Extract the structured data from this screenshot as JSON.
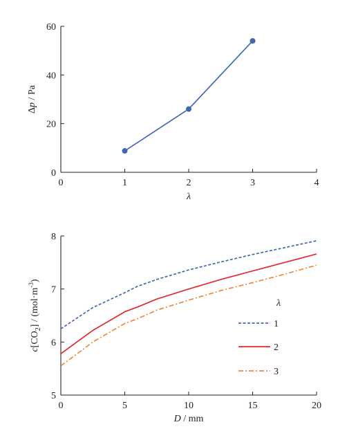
{
  "chart_data": [
    {
      "type": "line",
      "x": [
        1,
        2,
        3
      ],
      "series": [
        {
          "values": [
            8.8,
            26.0,
            54.0
          ],
          "color": "#3f67b2",
          "line_style": "solid",
          "markers": true
        }
      ],
      "xlabel": "λ",
      "ylabel_prefix": "Δ",
      "ylabel_var": "p",
      "ylabel_unit": " / Pa",
      "xlim": [
        0,
        4
      ],
      "ylim": [
        0,
        60
      ],
      "xticks": [
        0,
        1,
        2,
        3,
        4
      ],
      "yticks": [
        0,
        20,
        40,
        60
      ],
      "grid": false
    },
    {
      "type": "line",
      "x": [
        0,
        2.5,
        5,
        6,
        7.5,
        10,
        12.5,
        15,
        17.5,
        20
      ],
      "series": [
        {
          "name": "1",
          "values": [
            6.25,
            6.65,
            6.93,
            7.05,
            7.18,
            7.36,
            7.51,
            7.65,
            7.78,
            7.91
          ],
          "color": "#3f67b2",
          "line_style": "dashed"
        },
        {
          "name": "2",
          "values": [
            5.78,
            6.22,
            6.57,
            6.66,
            6.81,
            7.0,
            7.18,
            7.34,
            7.5,
            7.66
          ],
          "color": "#e0282d",
          "line_style": "solid"
        },
        {
          "name": "3",
          "values": [
            5.55,
            6.0,
            6.35,
            6.44,
            6.6,
            6.79,
            6.97,
            7.12,
            7.28,
            7.45
          ],
          "color": "#f0883a",
          "line_style": "dashdot"
        }
      ],
      "legend_title": "λ",
      "legend_position": "lower-right",
      "xlabel_var": "D",
      "xlabel_unit": " / mm",
      "ylabel_var": "c",
      "ylabel_mid": "[CO",
      "ylabel_sub": "2",
      "ylabel_unit": "] / (mol·m",
      "ylabel_sup": "-3",
      "ylabel_end": ")",
      "xlim": [
        0,
        20
      ],
      "ylim": [
        5,
        8
      ],
      "xticks": [
        0,
        5,
        10,
        15,
        20
      ],
      "yticks": [
        5,
        6,
        7,
        8
      ],
      "grid": false
    }
  ]
}
